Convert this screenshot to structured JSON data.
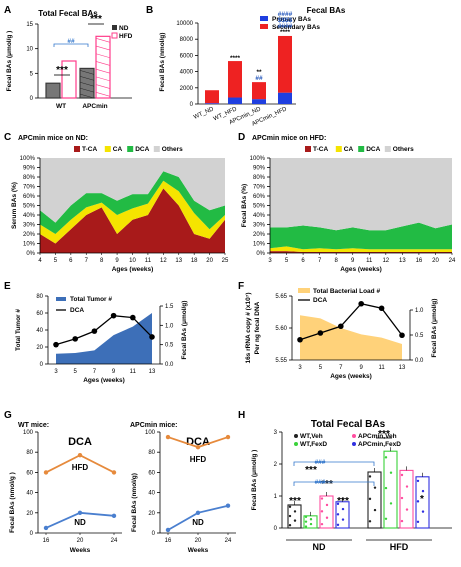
{
  "panel_labels": {
    "A": "A",
    "B": "B",
    "C": "C",
    "D": "D",
    "E": "E",
    "F": "F",
    "G": "G",
    "H": "H"
  },
  "colors": {
    "nd": "#3a3a3a",
    "hfd": "#ff3d8b",
    "primary": "#1f3fe0",
    "secondary": "#ee2222",
    "tca": "#a81a1a",
    "ca": "#f5e400",
    "dca": "#22bb44",
    "others": "#d2d2d2",
    "tumor": "#3d6fb8",
    "bacterial": "#ffd27a",
    "dca_line": "#111111",
    "g_hfd": "#e68a3c",
    "g_nd": "#4a7fcf",
    "veh_nd": "#222222",
    "fexd_nd": "#3ad23a",
    "veh_apc": "#ff4da0",
    "fexd_apc": "#3030e0"
  },
  "chart_data": [
    {
      "panel": "A",
      "type": "bar",
      "title": "Total Fecal BAs",
      "ylabel": "Fecal BAs (μmol/g )",
      "ylim": [
        0,
        15
      ],
      "yticks": [
        "0",
        "5",
        "10",
        "15"
      ],
      "categories": [
        "WT",
        "APCmin"
      ],
      "series": [
        {
          "name": "ND",
          "values": [
            3,
            6
          ]
        },
        {
          "name": "HFD",
          "values": [
            7.5,
            12.5
          ]
        }
      ],
      "annotations": [
        "***",
        "***",
        "##"
      ]
    },
    {
      "panel": "B",
      "type": "bar",
      "title": "Fecal BAs",
      "ylabel": "Fecal BAs (nmol/g)",
      "ylim": [
        0,
        10000
      ],
      "yticks": [
        "0",
        "2000",
        "4000",
        "6000",
        "8000",
        "10000"
      ],
      "categories": [
        "WT_ND",
        "WT_HFD",
        "APCmin_ND",
        "APCmin_HFD"
      ],
      "series": [
        {
          "name": "Primary BAs",
          "values": [
            100,
            800,
            600,
            1400
          ]
        },
        {
          "name": "Secondary BAs",
          "values": [
            1600,
            4500,
            2100,
            7000
          ]
        }
      ],
      "annotations": [
        "****",
        "##",
        "**",
        "####",
        "$$$$",
        "####",
        "****"
      ]
    },
    {
      "panel": "C",
      "type": "area",
      "header": "APCmin mice on ND:",
      "ylabel": "Serum BAs (%)",
      "xlabel": "Ages (weeks)",
      "x": [
        "4",
        "5",
        "6",
        "7",
        "8",
        "9",
        "10",
        "11",
        "12",
        "13",
        "18",
        "20",
        "25"
      ],
      "yticks": [
        "0%",
        "10%",
        "20%",
        "30%",
        "40%",
        "50%",
        "60%",
        "70%",
        "80%",
        "90%",
        "100%"
      ],
      "series": [
        {
          "name": "T-CA",
          "values": [
            20,
            10,
            25,
            40,
            48,
            20,
            35,
            40,
            68,
            50,
            20,
            15,
            35
          ]
        },
        {
          "name": "CA",
          "values": [
            10,
            10,
            10,
            8,
            5,
            20,
            12,
            12,
            8,
            15,
            22,
            10,
            5
          ]
        },
        {
          "name": "DCA",
          "values": [
            15,
            12,
            15,
            15,
            10,
            15,
            15,
            10,
            10,
            15,
            13,
            20,
            10
          ]
        },
        {
          "name": "Others",
          "values": [
            55,
            68,
            50,
            37,
            37,
            45,
            38,
            38,
            14,
            20,
            45,
            55,
            50
          ]
        }
      ]
    },
    {
      "panel": "D",
      "type": "area",
      "header": "APCmin mice on HFD:",
      "ylabel": "Fecal BAs (%)",
      "xlabel": "Ages (weeks)",
      "x": [
        "3",
        "5",
        "6",
        "7",
        "8",
        "9",
        "11",
        "12",
        "13",
        "16",
        "20",
        "24"
      ],
      "yticks": [
        "0%",
        "10%",
        "20%",
        "30%",
        "40%",
        "50%",
        "60%",
        "70%",
        "80%",
        "90%",
        "100%"
      ],
      "series": [
        {
          "name": "T-CA",
          "values": [
            2,
            2,
            1,
            1,
            1,
            1,
            1,
            1,
            1,
            1,
            1,
            1
          ]
        },
        {
          "name": "CA",
          "values": [
            3,
            5,
            3,
            4,
            3,
            4,
            3,
            3,
            3,
            3,
            3,
            3
          ]
        },
        {
          "name": "DCA",
          "values": [
            22,
            20,
            25,
            22,
            20,
            22,
            20,
            20,
            24,
            28,
            22,
            26
          ]
        },
        {
          "name": "Others",
          "values": [
            73,
            73,
            71,
            73,
            76,
            73,
            76,
            76,
            72,
            68,
            74,
            70
          ]
        }
      ]
    },
    {
      "panel": "E",
      "type": "line",
      "ylabel": "Total Tumor #",
      "y2label": "Fecal BAs (μmol/g)",
      "xlabel": "Ages (weeks)",
      "x": [
        "3",
        "5",
        "7",
        "9",
        "11",
        "13"
      ],
      "ylim": [
        0,
        80
      ],
      "yticks": [
        "0",
        "20",
        "40",
        "60",
        "80"
      ],
      "y2ticks": [
        "0.0",
        "0.5",
        "1.0",
        "1.5"
      ],
      "series": [
        {
          "name": "Total Tumor #",
          "values": [
            12,
            13,
            16,
            34,
            44,
            60
          ]
        },
        {
          "name": "DCA",
          "values": [
            0.5,
            0.65,
            0.85,
            1.25,
            1.2,
            0.7
          ]
        }
      ]
    },
    {
      "panel": "F",
      "type": "line",
      "ylabel": "16s rRNA copy # (x10⁷) Per ng fecal DNA",
      "y2label": "Fecal BAs (μmol/g)",
      "xlabel": "Ages (weeks)",
      "x": [
        "3",
        "5",
        "7",
        "9",
        "11",
        "13"
      ],
      "ylim": [
        5.55,
        5.65
      ],
      "yticks": [
        "5.55",
        "5.60",
        "5.65"
      ],
      "y2ticks": [
        "0.0",
        "0.5",
        "1.0"
      ],
      "series": [
        {
          "name": "Total Bacterial Load #",
          "values": [
            5.62,
            5.615,
            5.6,
            5.59,
            5.585,
            5.575
          ]
        },
        {
          "name": "DCA",
          "values": [
            0.45,
            0.6,
            0.75,
            1.25,
            1.15,
            0.55
          ]
        }
      ]
    },
    {
      "panel": "G1",
      "type": "line",
      "header": "WT mice:",
      "title": "DCA",
      "ylabel": "Fecal BAs (nmol/g )",
      "xlabel": "Weeks",
      "x": [
        "16",
        "20",
        "24"
      ],
      "ylim": [
        0,
        100
      ],
      "yticks": [
        "0",
        "20",
        "40",
        "60",
        "80",
        "100"
      ],
      "series": [
        {
          "name": "HFD",
          "values": [
            60,
            77,
            60
          ]
        },
        {
          "name": "ND",
          "values": [
            5,
            20,
            17
          ]
        }
      ]
    },
    {
      "panel": "G2",
      "type": "line",
      "header": "APCmin mice:",
      "title": "DCA",
      "ylabel": "Fecal BAs (nmol/g)",
      "xlabel": "Weeks",
      "x": [
        "16",
        "20",
        "24"
      ],
      "ylim": [
        0,
        100
      ],
      "yticks": [
        "0",
        "20",
        "40",
        "60",
        "80",
        "100"
      ],
      "series": [
        {
          "name": "HFD",
          "values": [
            95,
            85,
            95
          ]
        },
        {
          "name": "ND",
          "values": [
            3,
            20,
            27
          ]
        }
      ]
    },
    {
      "panel": "H",
      "type": "bar",
      "title": "Total Fecal BAs",
      "ylabel": "Fecal BAs (μmol/g )",
      "ylim": [
        0,
        3
      ],
      "yticks": [
        "0",
        "1",
        "2",
        "3"
      ],
      "groups": [
        "ND",
        "HFD"
      ],
      "series": [
        {
          "name": "WT,Veh",
          "values": [
            0.72,
            1.75
          ]
        },
        {
          "name": "WT,FexD",
          "values": [
            0.38,
            2.4
          ]
        },
        {
          "name": "APCmin,Veh",
          "values": [
            1.0,
            1.8
          ]
        },
        {
          "name": "APCmin,FexD",
          "values": [
            0.82,
            1.6
          ]
        }
      ],
      "annotations": [
        "***",
        "***",
        "***",
        "***",
        "***",
        "*",
        "###",
        "###"
      ]
    }
  ]
}
